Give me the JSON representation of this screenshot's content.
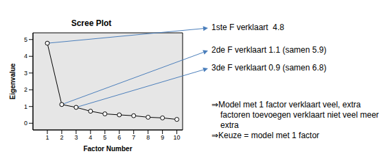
{
  "chart_data": {
    "type": "line",
    "title": "Scree Plot",
    "x_label": "Factor Number",
    "y_label": "Eigenvalue",
    "x": [
      1,
      2,
      3,
      4,
      5,
      6,
      7,
      8,
      9,
      10
    ],
    "values": [
      4.78,
      1.12,
      0.95,
      0.72,
      0.56,
      0.5,
      0.45,
      0.36,
      0.32,
      0.23
    ],
    "color": "#000000",
    "marker": "circle",
    "xlim": [
      0,
      10.4
    ],
    "xticks": [
      1,
      2,
      3,
      4,
      5,
      6,
      7,
      8,
      9,
      10
    ],
    "ylim": [
      -0.4,
      5.4
    ],
    "yticks": [
      0,
      1,
      2,
      3,
      4,
      5
    ],
    "grid": false,
    "annotations": [
      "1ste F verklaart  4.8",
      "2de F verklaart 1.1 (samen 5.9)",
      "3de F verklaart 0.9 (samen 6.8)"
    ],
    "conclusions": [
      "⇒Model met 1 factor verklaart veel, extra factoren toevoegen verklaart niet veel meer extra",
      "⇒Keuze = model met 1 factor"
    ]
  }
}
